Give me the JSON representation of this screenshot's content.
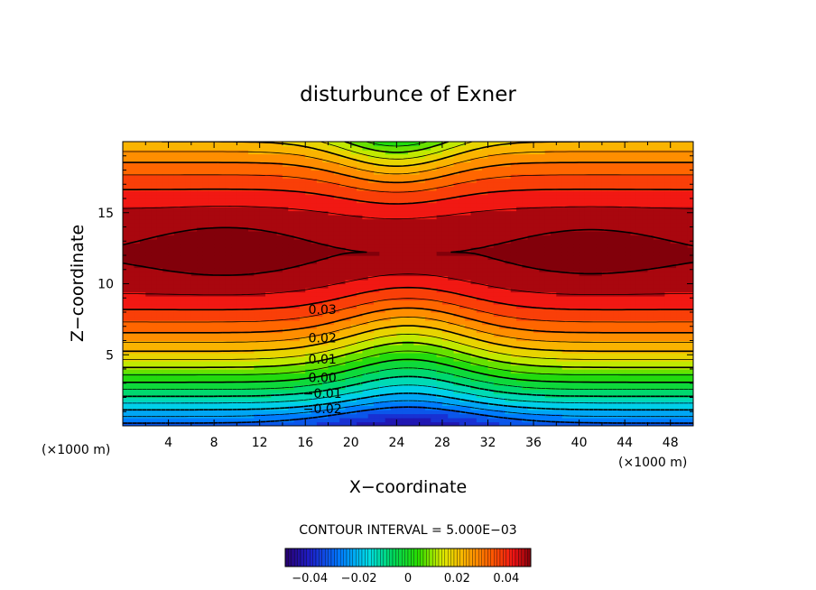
{
  "chart_data": {
    "type": "contour",
    "title": "disturbunce of Exner",
    "xlabel": "X−coordinate",
    "ylabel": "Z−coordinate",
    "x_unit": "(×1000 m)",
    "z_unit": "(×1000 m)",
    "xlim": [
      0,
      50
    ],
    "ylim": [
      0,
      20
    ],
    "x_ticks": [
      4,
      8,
      12,
      16,
      20,
      24,
      28,
      32,
      36,
      40,
      44,
      48
    ],
    "y_ticks": [
      5,
      10,
      15
    ],
    "contour_interval_text": "CONTOUR INTERVAL = 5.000E−03",
    "contour_interval": 0.005,
    "contour_labels": [
      {
        "text": "0.03",
        "x": 17.5,
        "z": 8.2
      },
      {
        "text": "0.02",
        "x": 17.5,
        "z": 6.2
      },
      {
        "text": "0.01",
        "x": 17.5,
        "z": 4.7
      },
      {
        "text": "0.00",
        "x": 17.5,
        "z": 3.4
      },
      {
        "text": "−0.01",
        "x": 17.5,
        "z": 2.3
      },
      {
        "text": "−0.02",
        "x": 17.5,
        "z": 1.2
      }
    ],
    "field_description": "Exner disturbance increasing with height from about -0.03 near the surface to about 0.05 at z=12 (maxima near x=9 and x=40), decreasing slightly toward the top; levels bulge upward around x=24-26.",
    "colorbar": {
      "min": -0.05,
      "max": 0.05,
      "ticks": [
        -0.04,
        -0.02,
        0,
        0.02,
        0.04
      ],
      "tick_labels": [
        "−0.04",
        "−0.02",
        "0",
        "0.02",
        "0.04"
      ]
    }
  }
}
